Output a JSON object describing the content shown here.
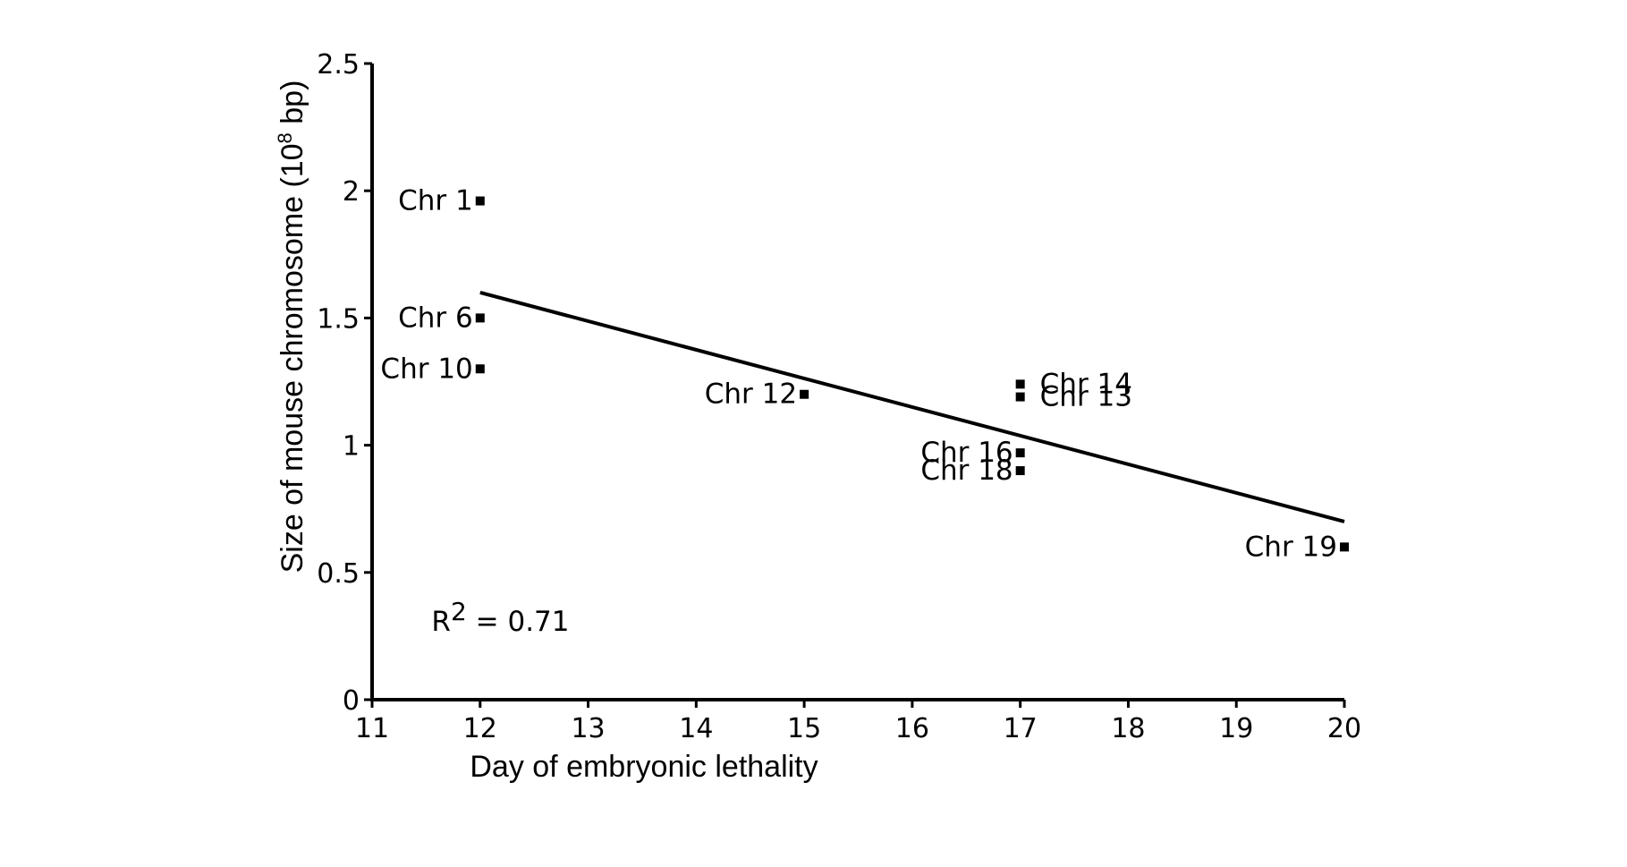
{
  "chart_data": {
    "type": "scatter",
    "title": "",
    "xlabel": "Day of embryonic lethality",
    "ylabel": {
      "before": "Size of mouse chromosome (10",
      "sup": "8",
      "after": " bp)"
    },
    "xlim": [
      11,
      20
    ],
    "ylim": [
      0,
      2.5
    ],
    "x_ticks": [
      11,
      12,
      13,
      14,
      15,
      16,
      17,
      18,
      19,
      20
    ],
    "y_ticks": [
      0,
      0.5,
      1,
      1.5,
      2,
      2.5
    ],
    "y_tick_labels": [
      "0",
      "0.5",
      "1",
      "1.5",
      "2",
      "2.5"
    ],
    "grid": false,
    "points": [
      {
        "label": "Chr 1",
        "x": 12,
        "y": 1.96,
        "label_side": "left"
      },
      {
        "label": "Chr 6",
        "x": 12,
        "y": 1.5,
        "label_side": "left"
      },
      {
        "label": "Chr 10",
        "x": 12,
        "y": 1.3,
        "label_side": "left"
      },
      {
        "label": "Chr 12",
        "x": 15,
        "y": 1.2,
        "label_side": "left"
      },
      {
        "label": "Chr 14",
        "x": 17,
        "y": 1.24,
        "label_side": "right"
      },
      {
        "label": "Chr 13",
        "x": 17,
        "y": 1.19,
        "label_side": "right"
      },
      {
        "label": "Chr 16",
        "x": 17,
        "y": 0.97,
        "label_side": "left"
      },
      {
        "label": "Chr 18",
        "x": 17,
        "y": 0.9,
        "label_side": "left"
      },
      {
        "label": "Chr 19",
        "x": 20,
        "y": 0.6,
        "label_side": "left"
      }
    ],
    "trendline": {
      "x": [
        12,
        20
      ],
      "y": [
        1.6,
        0.7
      ]
    },
    "annotation": {
      "base": "R",
      "sup": "2",
      "rest": " = 0.71",
      "x": 11.55,
      "y": 0.27
    }
  }
}
